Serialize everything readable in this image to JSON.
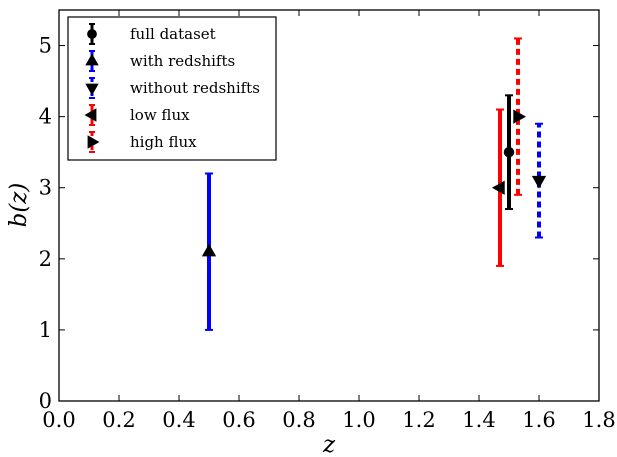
{
  "chart_data": {
    "type": "scatter",
    "xlabel": "z",
    "ylabel": "b(z)",
    "xlim": [
      0.0,
      1.8
    ],
    "ylim": [
      0,
      5.5
    ],
    "xticks": [
      "0.0",
      "0.2",
      "0.4",
      "0.6",
      "0.8",
      "1.0",
      "1.2",
      "1.4",
      "1.6",
      "1.8"
    ],
    "yticks": [
      "0",
      "1",
      "2",
      "3",
      "4",
      "5"
    ],
    "grid": false,
    "legend_position": "top-left",
    "series": [
      {
        "name": "full dataset",
        "marker": "circle",
        "color": "#000000",
        "linestyle": "solid",
        "points": [
          {
            "x": 1.5,
            "y": 3.5,
            "ylo": 2.7,
            "yhi": 4.3
          }
        ]
      },
      {
        "name": "with redshifts",
        "marker": "triangle-up",
        "color": "#0000ff",
        "linestyle": "solid",
        "points": [
          {
            "x": 0.5,
            "y": 2.1,
            "ylo": 1.0,
            "yhi": 3.2
          }
        ]
      },
      {
        "name": "without redshifts",
        "marker": "triangle-down",
        "color": "#0000ff",
        "linestyle": "dashed",
        "points": [
          {
            "x": 1.6,
            "y": 3.1,
            "ylo": 2.3,
            "yhi": 3.9
          }
        ]
      },
      {
        "name": "low flux",
        "marker": "triangle-left",
        "color": "#ff0000",
        "linestyle": "solid",
        "points": [
          {
            "x": 1.47,
            "y": 3.0,
            "ylo": 1.9,
            "yhi": 4.1
          }
        ]
      },
      {
        "name": "high flux",
        "marker": "triangle-right",
        "color": "#ff0000",
        "linestyle": "dashed",
        "points": [
          {
            "x": 1.53,
            "y": 4.0,
            "ylo": 2.9,
            "yhi": 5.1
          }
        ]
      }
    ]
  }
}
